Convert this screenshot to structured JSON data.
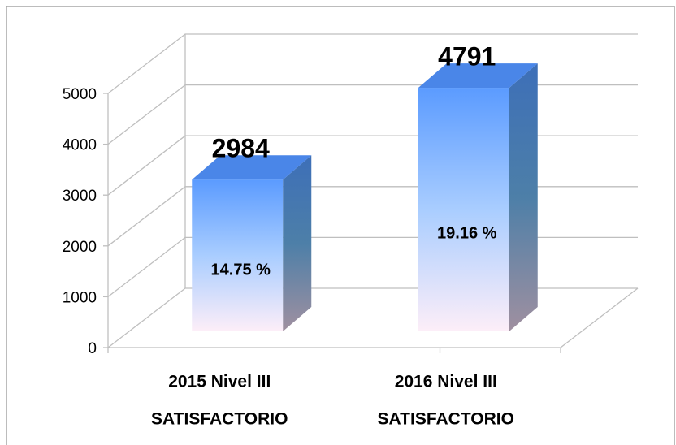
{
  "chart_data": {
    "type": "bar3d",
    "categories": [
      [
        "2015 Nivel III",
        "SATISFACTORIO"
      ],
      [
        "2016 Nivel III",
        "SATISFACTORIO"
      ]
    ],
    "values": [
      2984,
      4791
    ],
    "annotations": [
      "14.75 %",
      "19.16 %"
    ],
    "color": "#5b9bff",
    "ylim": [
      0,
      5000
    ],
    "yticks": [
      0,
      1000,
      2000,
      3000,
      4000,
      5000
    ],
    "grid": true
  }
}
